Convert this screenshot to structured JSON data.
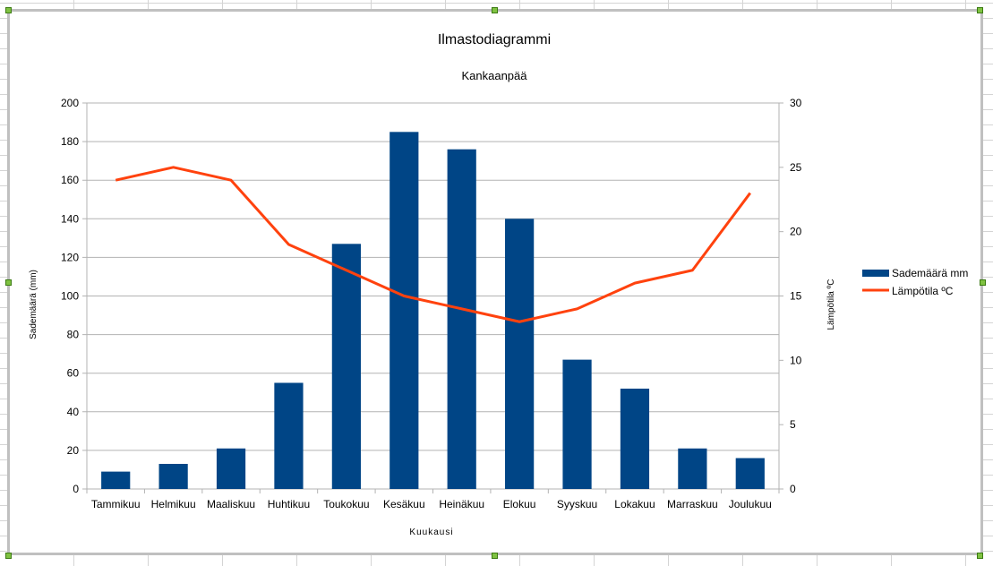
{
  "chart_data": {
    "type": "bar",
    "title": "Ilmastodiagrammi",
    "subtitle": "Kankaanpää",
    "xlabel": "Kuukausi",
    "ylabel": "Sademäärä (mm)",
    "y2label": "Lämpötila ºC",
    "ylim": [
      0,
      200
    ],
    "y2lim": [
      0,
      30
    ],
    "yticks": [
      0,
      20,
      40,
      60,
      80,
      100,
      120,
      140,
      160,
      180,
      200
    ],
    "y2ticks": [
      0,
      5,
      10,
      15,
      20,
      25,
      30
    ],
    "grid": true,
    "legend_position": "right",
    "categories": [
      "Tammikuu",
      "Helmikuu",
      "Maaliskuu",
      "Huhtikuu",
      "Toukokuu",
      "Kesäkuu",
      "Heinäkuu",
      "Elokuu",
      "Syyskuu",
      "Lokakuu",
      "Marraskuu",
      "Joulukuu"
    ],
    "series": [
      {
        "name": "Sademäärä mm",
        "kind": "bar",
        "axis": "left",
        "color": "#004586",
        "values": [
          9,
          13,
          21,
          55,
          127,
          185,
          176,
          140,
          67,
          52,
          21,
          16
        ]
      },
      {
        "name": "Lämpötila ºC",
        "kind": "line",
        "axis": "right",
        "color": "#ff420e",
        "values": [
          24,
          25,
          24,
          19,
          17,
          15,
          14,
          13,
          14,
          16,
          17,
          23
        ]
      }
    ]
  }
}
